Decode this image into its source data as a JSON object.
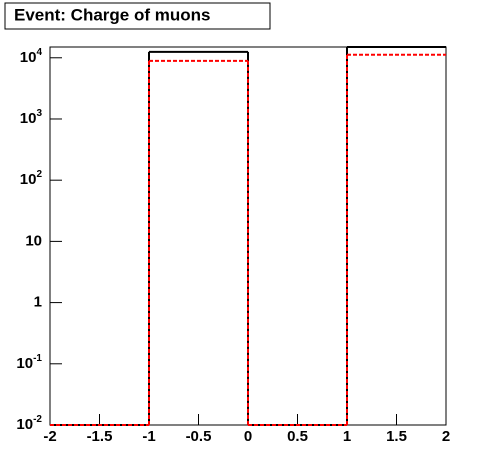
{
  "chart_data": {
    "type": "histogram",
    "title": "Event: Charge of muons",
    "bins": [
      -2,
      -1,
      0,
      1,
      2
    ],
    "series": [
      {
        "color": "#000000",
        "dash": false,
        "values": [
          0,
          12500,
          0,
          15000
        ]
      },
      {
        "color": "#ff0000",
        "dash": true,
        "values": [
          0,
          8900,
          0,
          11200
        ]
      }
    ],
    "log_y": true,
    "xlim": [
      -2,
      2
    ],
    "ylim": [
      0.01,
      15000
    ],
    "xticks": [
      -2,
      -1.5,
      -1,
      -0.5,
      0,
      0.5,
      1,
      1.5,
      2
    ],
    "yticks": [
      {
        "value": 0.01,
        "label": "10",
        "exponent": "-2"
      },
      {
        "value": 0.1,
        "label": "10",
        "exponent": "-1"
      },
      1,
      10,
      {
        "value": 100,
        "label": "10",
        "exponent": "2"
      },
      {
        "value": 1000,
        "label": "10",
        "exponent": "3"
      },
      {
        "value": 10000,
        "label": "10",
        "exponent": "4"
      }
    ]
  }
}
